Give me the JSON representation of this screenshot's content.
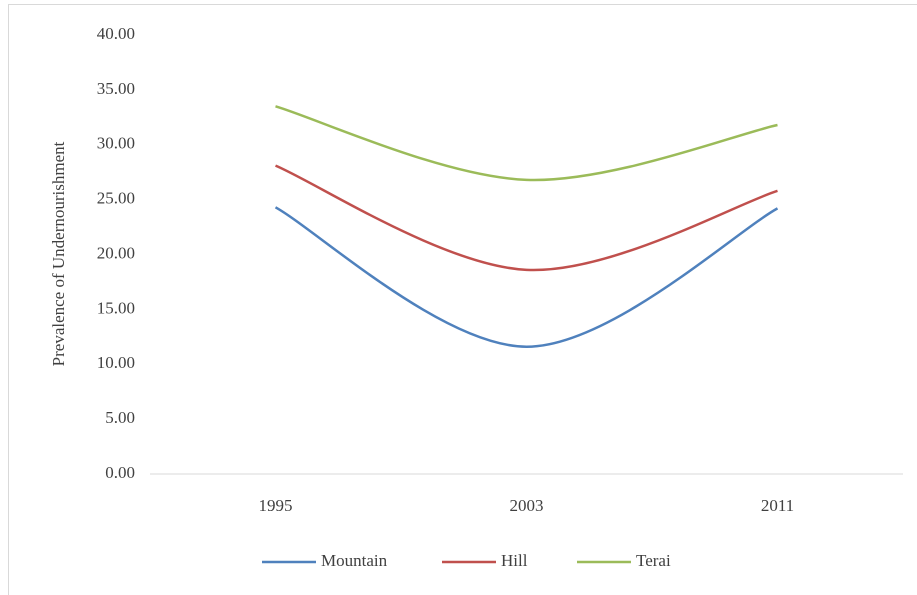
{
  "chart_data": {
    "type": "line",
    "y_axis_label": "Prevalence of Undernourishment",
    "categories": [
      "1995",
      "2003",
      "2011"
    ],
    "series": [
      {
        "name": "Mountain",
        "color": "#4f81bd",
        "values": [
          24.3,
          11.6,
          24.2
        ]
      },
      {
        "name": "Hill",
        "color": "#c0504d",
        "values": [
          28.1,
          18.6,
          25.8
        ]
      },
      {
        "name": "Terai",
        "color": "#9bbb59",
        "values": [
          33.5,
          26.8,
          31.8
        ]
      }
    ],
    "ylim": [
      0,
      40
    ],
    "yticks": [
      {
        "value": 0,
        "label": "0.00"
      },
      {
        "value": 5,
        "label": "5.00"
      },
      {
        "value": 10,
        "label": "10.00"
      },
      {
        "value": 15,
        "label": "15.00"
      },
      {
        "value": 20,
        "label": "20.00"
      },
      {
        "value": 25,
        "label": "25.00"
      },
      {
        "value": 30,
        "label": "30.00"
      },
      {
        "value": 35,
        "label": "35.00"
      },
      {
        "value": 40,
        "label": "40.00"
      }
    ],
    "smooth": true,
    "legend": "bottom"
  }
}
